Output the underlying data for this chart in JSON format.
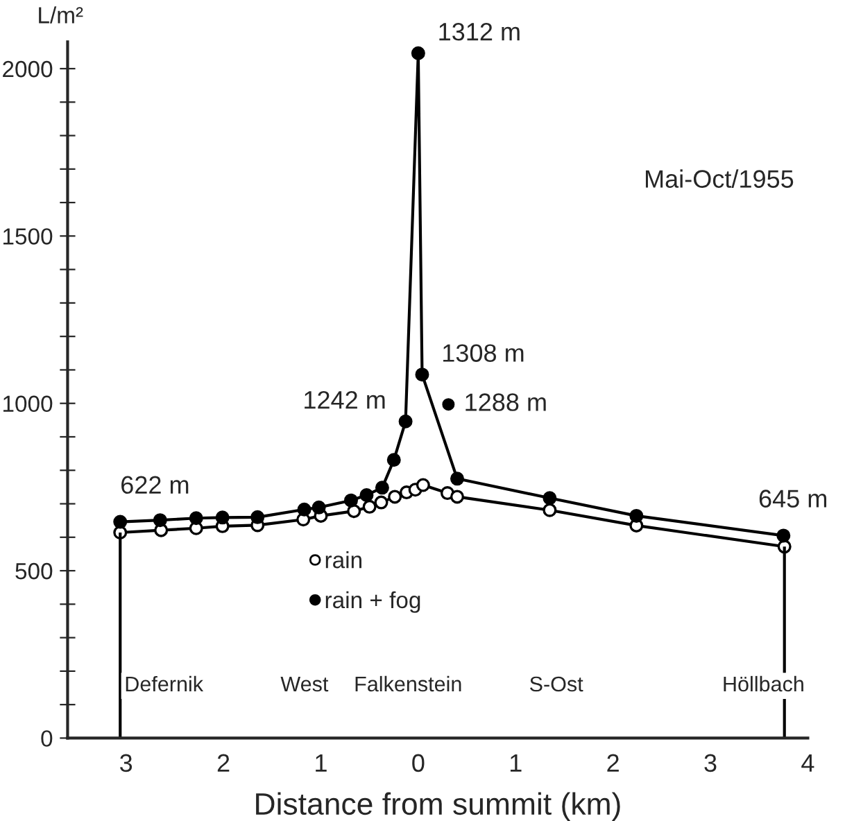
{
  "chart_data": {
    "type": "line",
    "xlabel": "Distance from summit (km)",
    "ylabel": "L/m²",
    "xlim": [
      -3.6,
      4.0
    ],
    "ylim": [
      0,
      2080
    ],
    "xticks": [
      {
        "value": -3,
        "label": "3"
      },
      {
        "value": -2,
        "label": "2"
      },
      {
        "value": -1,
        "label": "1"
      },
      0,
      1,
      2,
      3,
      4
    ],
    "yticks": [
      0,
      {
        "value": 100,
        "label": null
      },
      {
        "value": 200,
        "label": null
      },
      {
        "value": 300,
        "label": null
      },
      {
        "value": 400,
        "label": null
      },
      500,
      {
        "value": 600,
        "label": null
      },
      {
        "value": 700,
        "label": null
      },
      {
        "value": 800,
        "label": null
      },
      {
        "value": 900,
        "label": null
      },
      1000,
      {
        "value": 1100,
        "label": null
      },
      {
        "value": 1200,
        "label": null
      },
      {
        "value": 1300,
        "label": null
      },
      {
        "value": 1400,
        "label": null
      },
      1500,
      {
        "value": 1600,
        "label": null
      },
      {
        "value": 1700,
        "label": null
      },
      {
        "value": 1800,
        "label": null
      },
      {
        "value": 1900,
        "label": null
      },
      2000
    ],
    "series": [
      {
        "name": "rain",
        "color": "#000000",
        "marker": "circle",
        "x": [
          -3.06,
          -2.64,
          -2.28,
          -2.01,
          -1.65,
          -1.18,
          -1.0,
          -0.66,
          -0.5,
          -0.38,
          -0.24,
          -0.12,
          -0.03,
          0.05,
          0.3,
          0.4,
          1.35,
          2.24,
          3.76
        ],
        "values": [
          614,
          621,
          627,
          633,
          636,
          653,
          664,
          678,
          691,
          704,
          721,
          734,
          742,
          756,
          732,
          721,
          681,
          635,
          572
        ]
      },
      {
        "name": "rain + fog",
        "color": "#000000",
        "marker": "circle",
        "x": [
          -3.06,
          -2.65,
          -2.28,
          -2.01,
          -1.65,
          -1.17,
          -1.02,
          -0.69,
          -0.53,
          -0.37,
          -0.25,
          -0.13,
          0.0,
          0.04,
          0.4,
          1.35,
          2.24,
          3.75
        ],
        "values": [
          646,
          651,
          657,
          659,
          660,
          683,
          689,
          710,
          726,
          748,
          831,
          946,
          2046,
          1086,
          775,
          717,
          664,
          605
        ]
      },
      {
        "type": "scatter",
        "color": "#000000",
        "marker": "circle",
        "x": [
          0.31
        ],
        "values": [
          997
        ]
      }
    ],
    "ref_lines": [
      {
        "axis": "x",
        "value": -3.06
      },
      {
        "axis": "x",
        "value": 3.76
      }
    ],
    "annotations": [
      {
        "text": "1312 m",
        "x": 0.0,
        "y": 2046
      },
      {
        "text": "1308 m",
        "x": 0.04,
        "y": 1086
      },
      {
        "text": "1288 m",
        "x": 0.31,
        "y": 997
      },
      {
        "text": "1242 m",
        "x": -0.13,
        "y": 946
      },
      {
        "text": "622 m",
        "x": -3.06,
        "y": 646
      },
      {
        "text": "645 m",
        "x": 3.75,
        "y": 605
      },
      "Mai-Oct/1955",
      "Defernik",
      "West",
      "Falkenstein",
      "S-Ost",
      "Höllbach"
    ],
    "legend": "bottom left",
    "grid": false
  }
}
